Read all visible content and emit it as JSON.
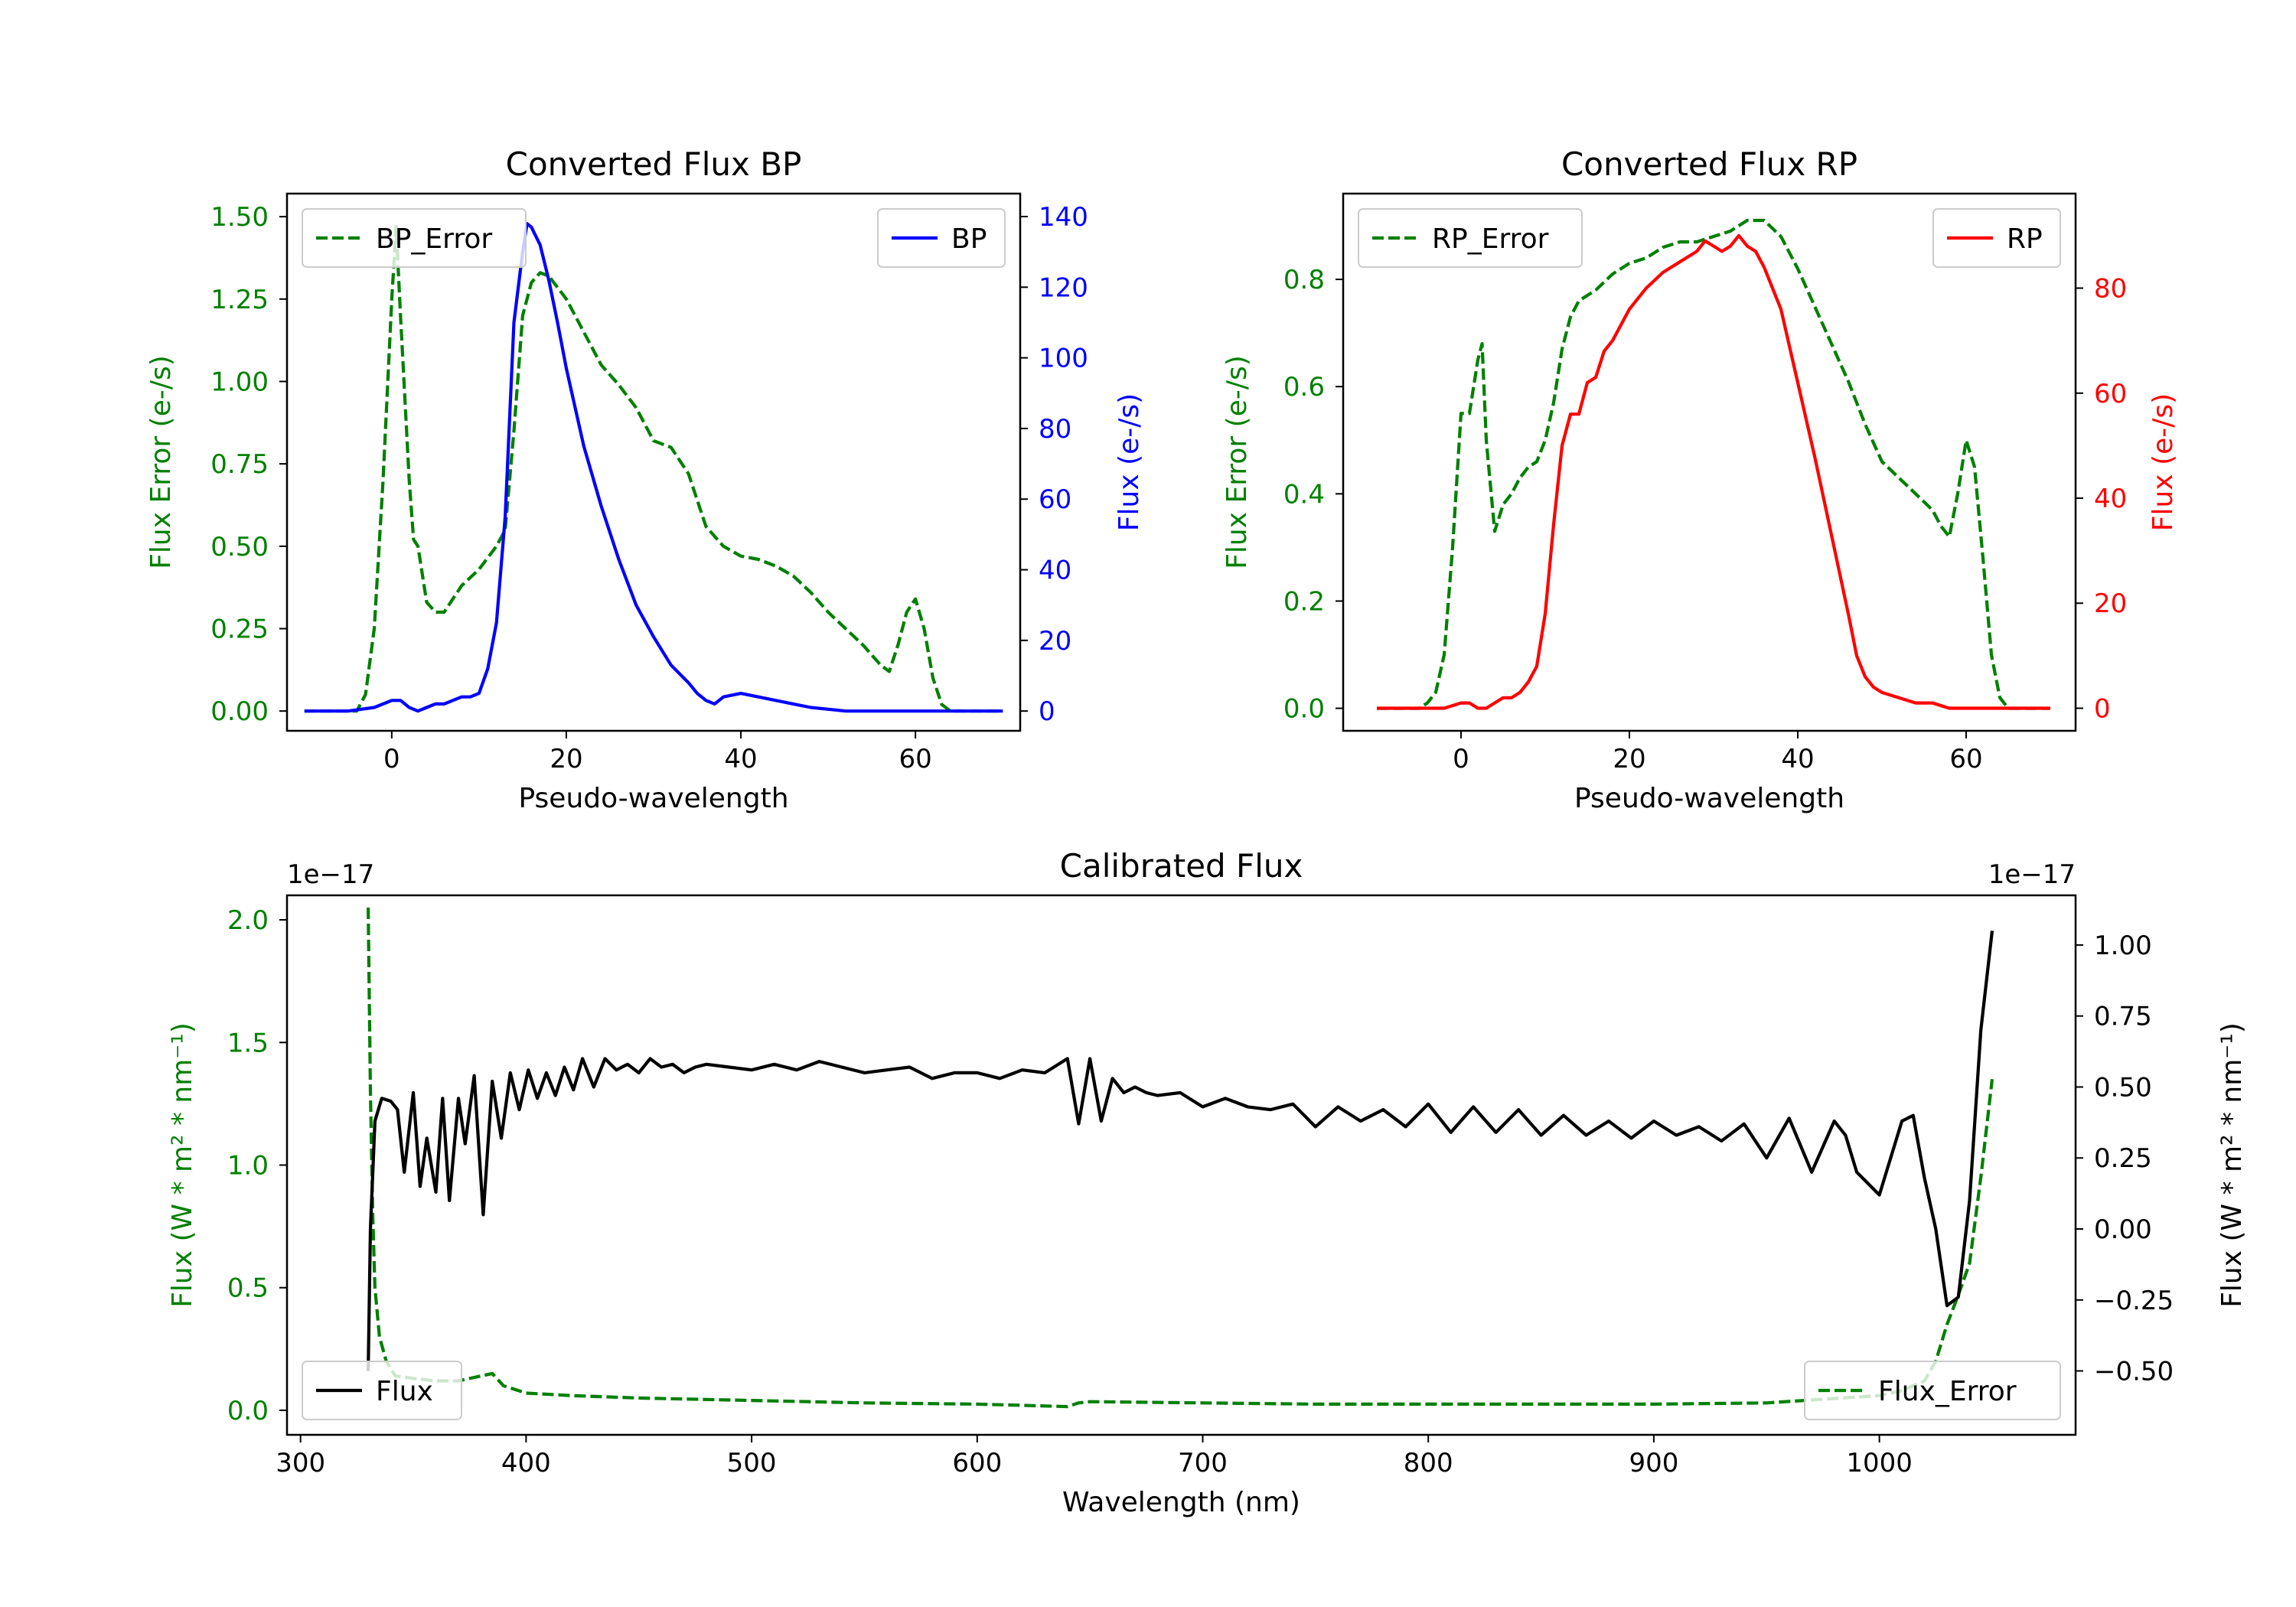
{
  "colors": {
    "error": "#008000",
    "bp": "#0000ff",
    "rp": "#ff0000",
    "flux": "#000000",
    "axis": "#000000"
  },
  "chart_data": [
    {
      "id": "bp",
      "type": "line",
      "title": "Converted Flux BP",
      "xlabel": "Pseudo-wavelength",
      "ylabel_left": "Flux Error (e-/s)",
      "ylabel_right": "Flux (e-/s)",
      "xlim": [
        -12,
        72
      ],
      "ylim_left": [
        -0.06,
        1.57
      ],
      "ylim_right": [
        -5.6,
        146.5
      ],
      "xticks": [
        "0",
        "20",
        "40",
        "60"
      ],
      "xtick_values": [
        0,
        20,
        40,
        60
      ],
      "yticks_left": [
        "0.00",
        "0.25",
        "0.50",
        "0.75",
        "1.00",
        "1.25",
        "1.50"
      ],
      "ytick_values_left": [
        0,
        0.25,
        0.5,
        0.75,
        1.0,
        1.25,
        1.5
      ],
      "yticks_right": [
        "0",
        "20",
        "40",
        "60",
        "80",
        "100",
        "120",
        "140"
      ],
      "ytick_values_right": [
        0,
        20,
        40,
        60,
        80,
        100,
        120,
        140
      ],
      "legend_left": {
        "label": "BP_Error",
        "position": "upper-left"
      },
      "legend_right": {
        "label": "BP",
        "position": "upper-right"
      },
      "series_error": {
        "name": "BP_Error",
        "axis": "left",
        "style": "dashed",
        "x": [
          -10,
          -4,
          -3,
          -2,
          -1,
          0,
          0.5,
          1,
          2,
          2.5,
          3,
          4,
          5,
          6,
          7,
          8,
          10,
          12,
          13,
          14,
          15,
          16,
          17,
          18,
          20,
          22,
          24,
          26,
          28,
          30,
          32,
          34,
          36,
          38,
          40,
          42,
          44,
          46,
          48,
          50,
          52,
          54,
          56,
          57,
          58,
          59,
          60,
          61,
          62,
          63,
          64,
          70
        ],
        "values": [
          0,
          0.0,
          0.05,
          0.25,
          0.7,
          1.25,
          1.47,
          1.2,
          0.7,
          0.52,
          0.5,
          0.33,
          0.3,
          0.3,
          0.34,
          0.38,
          0.43,
          0.5,
          0.55,
          0.85,
          1.2,
          1.3,
          1.33,
          1.32,
          1.25,
          1.15,
          1.05,
          0.99,
          0.92,
          0.82,
          0.8,
          0.72,
          0.56,
          0.5,
          0.47,
          0.46,
          0.44,
          0.41,
          0.36,
          0.3,
          0.25,
          0.2,
          0.14,
          0.12,
          0.2,
          0.3,
          0.34,
          0.25,
          0.1,
          0.02,
          0.0,
          0
        ]
      },
      "series_flux": {
        "name": "BP",
        "axis": "right",
        "style": "solid",
        "x": [
          -10,
          -5,
          -2,
          0,
          1,
          2,
          3,
          4,
          5,
          6,
          7,
          8,
          9,
          10,
          11,
          12,
          13,
          14,
          15,
          15.5,
          16,
          17,
          18,
          19,
          20,
          22,
          24,
          26,
          28,
          30,
          32,
          34,
          35,
          36,
          37,
          38,
          40,
          42,
          44,
          46,
          48,
          50,
          52,
          55,
          60,
          65,
          70
        ],
        "values": [
          0,
          0,
          1,
          3,
          3,
          1,
          0,
          1,
          2,
          2,
          3,
          4,
          4,
          5,
          12,
          25,
          55,
          110,
          130,
          138,
          137,
          132,
          122,
          110,
          97,
          75,
          58,
          43,
          30,
          21,
          13,
          8,
          5,
          3,
          2,
          4,
          5,
          4,
          3,
          2,
          1,
          0.5,
          0,
          0,
          0,
          0,
          0
        ]
      }
    },
    {
      "id": "rp",
      "type": "line",
      "title": "Converted Flux RP",
      "xlabel": "Pseudo-wavelength",
      "ylabel_left": "Flux Error (e-/s)",
      "ylabel_right": "Flux (e-/s)",
      "xlim": [
        -14,
        73
      ],
      "ylim_left": [
        -0.042,
        0.96
      ],
      "ylim_right": [
        -4.3,
        98
      ],
      "xticks": [
        "0",
        "20",
        "40",
        "60"
      ],
      "xtick_values": [
        0,
        20,
        40,
        60
      ],
      "yticks_left": [
        "0.0",
        "0.2",
        "0.4",
        "0.6",
        "0.8"
      ],
      "ytick_values_left": [
        0,
        0.2,
        0.4,
        0.6,
        0.8
      ],
      "yticks_right": [
        "0",
        "20",
        "40",
        "60",
        "80"
      ],
      "ytick_values_right": [
        0,
        20,
        40,
        60,
        80
      ],
      "legend_left": {
        "label": "RP_Error",
        "position": "upper-left"
      },
      "legend_right": {
        "label": "RP",
        "position": "upper-right"
      },
      "series_error": {
        "name": "RP_Error",
        "axis": "left",
        "style": "dashed",
        "x": [
          -10,
          -5,
          -4,
          -3,
          -2,
          -1,
          0,
          1,
          2,
          2.5,
          3,
          4,
          5,
          6,
          7,
          8,
          9,
          10,
          11,
          12,
          13,
          14,
          16,
          18,
          20,
          22,
          24,
          26,
          28,
          30,
          32,
          34,
          36,
          38,
          40,
          42,
          44,
          46,
          48,
          50,
          52,
          54,
          56,
          57,
          58,
          59,
          60,
          61,
          62,
          63,
          64,
          65,
          70
        ],
        "values": [
          0,
          0,
          0.01,
          0.03,
          0.1,
          0.3,
          0.55,
          0.55,
          0.65,
          0.68,
          0.5,
          0.33,
          0.38,
          0.4,
          0.43,
          0.45,
          0.46,
          0.5,
          0.57,
          0.67,
          0.73,
          0.76,
          0.78,
          0.81,
          0.83,
          0.84,
          0.86,
          0.87,
          0.87,
          0.88,
          0.89,
          0.91,
          0.91,
          0.88,
          0.82,
          0.75,
          0.68,
          0.61,
          0.53,
          0.46,
          0.43,
          0.4,
          0.37,
          0.34,
          0.32,
          0.4,
          0.5,
          0.45,
          0.28,
          0.1,
          0.02,
          0.0,
          0
        ]
      },
      "series_flux": {
        "name": "RP",
        "axis": "right",
        "style": "solid",
        "x": [
          -10,
          -5,
          -2,
          0,
          1,
          2,
          3,
          4,
          5,
          6,
          7,
          8,
          9,
          10,
          11,
          12,
          13,
          14,
          15,
          16,
          17,
          18,
          20,
          22,
          24,
          26,
          28,
          29,
          30,
          31,
          32,
          33,
          34,
          35,
          36,
          38,
          40,
          42,
          44,
          46,
          47,
          48,
          49,
          50,
          52,
          54,
          56,
          58,
          60,
          65,
          70
        ],
        "values": [
          0,
          0,
          0,
          1,
          1,
          0,
          0,
          1,
          2,
          2,
          3,
          5,
          8,
          18,
          35,
          50,
          56,
          56,
          62,
          63,
          68,
          70,
          76,
          80,
          83,
          85,
          87,
          89,
          88,
          87,
          88,
          90,
          88,
          87,
          84,
          76,
          62,
          48,
          33,
          18,
          10,
          6,
          4,
          3,
          2,
          1,
          1,
          0,
          0,
          0,
          0
        ]
      }
    },
    {
      "id": "calib",
      "type": "line",
      "title": "Calibrated Flux",
      "xlabel": "Wavelength (nm)",
      "ylabel_left": "Flux (W * m² * nm⁻¹)",
      "ylabel_right": "Flux (W * m² * nm⁻¹)",
      "offset_left": "1e−17",
      "offset_right": "1e−17",
      "xlim": [
        294,
        1087
      ],
      "ylim_left": [
        -0.1,
        2.1
      ],
      "ylim_right": [
        -0.725,
        1.175
      ],
      "xticks": [
        "300",
        "400",
        "500",
        "600",
        "700",
        "800",
        "900",
        "1000"
      ],
      "xtick_values": [
        300,
        400,
        500,
        600,
        700,
        800,
        900,
        1000
      ],
      "yticks_left": [
        "0.0",
        "0.5",
        "1.0",
        "1.5",
        "2.0"
      ],
      "ytick_values_left": [
        0,
        0.5,
        1.0,
        1.5,
        2.0
      ],
      "yticks_right": [
        "−0.50",
        "−0.25",
        "0.00",
        "0.25",
        "0.50",
        "0.75",
        "1.00"
      ],
      "ytick_values_right": [
        -0.5,
        -0.25,
        0,
        0.25,
        0.5,
        0.75,
        1.0
      ],
      "legend_left": {
        "label": "Flux",
        "position": "lower-left"
      },
      "legend_right": {
        "label": "Flux_Error",
        "position": "lower-right"
      },
      "series_flux": {
        "name": "Flux",
        "axis": "right",
        "style": "solid",
        "x": [
          330,
          331,
          333,
          336,
          340,
          343,
          346,
          350,
          353,
          356,
          360,
          363,
          366,
          370,
          373,
          377,
          381,
          385,
          389,
          393,
          397,
          401,
          405,
          409,
          413,
          417,
          421,
          425,
          430,
          435,
          440,
          445,
          450,
          455,
          460,
          465,
          470,
          475,
          480,
          490,
          500,
          510,
          520,
          530,
          540,
          550,
          560,
          570,
          580,
          590,
          600,
          610,
          620,
          630,
          640,
          645,
          650,
          655,
          660,
          665,
          670,
          675,
          680,
          690,
          700,
          710,
          720,
          730,
          740,
          750,
          760,
          770,
          780,
          790,
          800,
          810,
          820,
          830,
          840,
          850,
          860,
          870,
          880,
          890,
          900,
          910,
          920,
          930,
          940,
          950,
          960,
          970,
          980,
          985,
          990,
          1000,
          1010,
          1015,
          1020,
          1025,
          1030,
          1035,
          1040,
          1045,
          1050
        ],
        "values": [
          -0.5,
          0.0,
          0.38,
          0.46,
          0.45,
          0.42,
          0.2,
          0.48,
          0.15,
          0.32,
          0.13,
          0.46,
          0.1,
          0.46,
          0.3,
          0.54,
          0.05,
          0.52,
          0.32,
          0.55,
          0.42,
          0.56,
          0.46,
          0.55,
          0.47,
          0.57,
          0.49,
          0.6,
          0.5,
          0.6,
          0.56,
          0.58,
          0.55,
          0.6,
          0.57,
          0.58,
          0.55,
          0.57,
          0.58,
          0.57,
          0.56,
          0.58,
          0.56,
          0.59,
          0.57,
          0.55,
          0.56,
          0.57,
          0.53,
          0.55,
          0.55,
          0.53,
          0.56,
          0.55,
          0.6,
          0.37,
          0.6,
          0.38,
          0.53,
          0.48,
          0.5,
          0.48,
          0.47,
          0.48,
          0.43,
          0.46,
          0.43,
          0.42,
          0.44,
          0.36,
          0.43,
          0.38,
          0.42,
          0.36,
          0.44,
          0.34,
          0.43,
          0.34,
          0.42,
          0.33,
          0.4,
          0.33,
          0.38,
          0.32,
          0.38,
          0.33,
          0.36,
          0.31,
          0.37,
          0.25,
          0.39,
          0.2,
          0.38,
          0.33,
          0.2,
          0.12,
          0.38,
          0.4,
          0.18,
          0.0,
          -0.27,
          -0.24,
          0.1,
          0.7,
          1.05
        ]
      },
      "series_error": {
        "name": "Flux_Error",
        "axis": "left",
        "style": "dashed",
        "x": [
          330,
          331,
          332,
          333,
          335,
          338,
          342,
          350,
          360,
          370,
          380,
          385,
          390,
          400,
          420,
          450,
          500,
          550,
          600,
          640,
          645,
          650,
          700,
          750,
          800,
          850,
          900,
          950,
          1000,
          1010,
          1020,
          1025,
          1030,
          1035,
          1040,
          1045,
          1050
        ],
        "values": [
          2.05,
          1.3,
          0.8,
          0.5,
          0.3,
          0.2,
          0.14,
          0.13,
          0.12,
          0.12,
          0.14,
          0.15,
          0.1,
          0.07,
          0.06,
          0.05,
          0.04,
          0.03,
          0.025,
          0.015,
          0.03,
          0.035,
          0.03,
          0.025,
          0.025,
          0.025,
          0.025,
          0.03,
          0.06,
          0.08,
          0.12,
          0.2,
          0.35,
          0.47,
          0.6,
          0.95,
          1.35
        ]
      }
    }
  ]
}
